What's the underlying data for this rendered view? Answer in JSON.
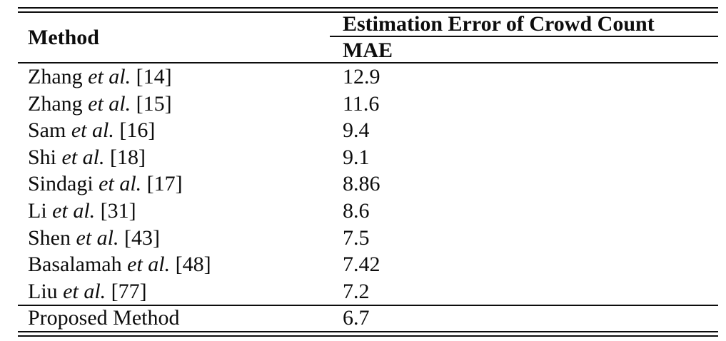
{
  "table": {
    "header": {
      "method_label": "Method",
      "group_label": "Estimation Error of Crowd Count",
      "sub_label": "MAE"
    },
    "rows": [
      {
        "name": "Zhang",
        "etal": "et al.",
        "ref": "[14]",
        "mae": "12.9"
      },
      {
        "name": "Zhang",
        "etal": "et al.",
        "ref": "[15]",
        "mae": "11.6"
      },
      {
        "name": "Sam",
        "etal": "et al.",
        "ref": "[16]",
        "mae": "9.4"
      },
      {
        "name": "Shi",
        "etal": "et al.",
        "ref": "[18]",
        "mae": "9.1"
      },
      {
        "name": "Sindagi",
        "etal": "et al.",
        "ref": "[17]",
        "mae": "8.86"
      },
      {
        "name": "Li",
        "etal": "et al.",
        "ref": "[31]",
        "mae": "8.6"
      },
      {
        "name": "Shen",
        "etal": "et al.",
        "ref": "[43]",
        "mae": "7.5"
      },
      {
        "name": "Basalamah",
        "etal": "et al.",
        "ref": "[48]",
        "mae": "7.42"
      },
      {
        "name": "Liu",
        "etal": "et al.",
        "ref": "[77]",
        "mae": "7.2"
      }
    ],
    "footer_row": {
      "name": "Proposed Method",
      "mae": "6.7"
    }
  },
  "colors": {
    "text": "#0d0d0d",
    "rule": "#0d0d0d",
    "background": "#ffffff"
  }
}
